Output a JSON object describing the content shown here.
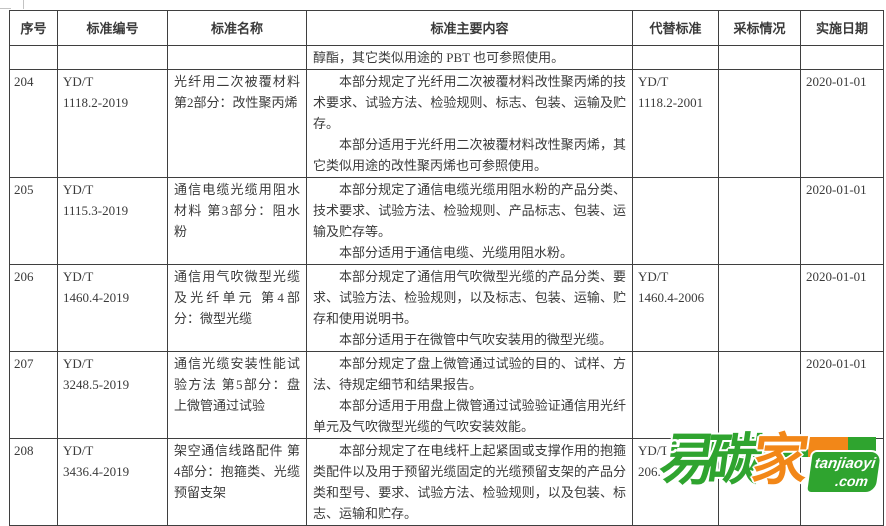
{
  "table": {
    "columns": [
      "序号",
      "标准编号",
      "标准名称",
      "标准主要内容",
      "代替标准",
      "采标情况",
      "实施日期"
    ],
    "rows": [
      {
        "no": "",
        "code_lines": [],
        "name": "",
        "content_paragraphs": [
          "醇酯，其它类似用途的 PBT 也可参照使用。"
        ],
        "indent": false,
        "replaced_lines": [],
        "adoption": "",
        "date": ""
      },
      {
        "no": "204",
        "code_lines": [
          "YD/T",
          "1118.2-2019"
        ],
        "name": "光纤用二次被覆材料 第2部分：改性聚丙烯",
        "content_paragraphs": [
          "本部分规定了光纤用二次被覆材料改性聚丙烯的技术要求、试验方法、检验规则、标志、包装、运输及贮存。",
          "本部分适用于光纤用二次被覆材料改性聚丙烯，其它类似用途的改性聚丙烯也可参照使用。"
        ],
        "indent": true,
        "replaced_lines": [
          "YD/T",
          "1118.2-2001"
        ],
        "adoption": "",
        "date": "2020-01-01"
      },
      {
        "no": "205",
        "code_lines": [
          "YD/T",
          "1115.3-2019"
        ],
        "name": "通信电缆光缆用阻水材料 第3部分：阻水粉",
        "content_paragraphs": [
          "本部分规定了通信电缆光缆用阻水粉的产品分类、技术要求、试验方法、检验规则、产品标志、包装、运输及贮存等。",
          "本部分适用于通信电缆、光缆用阻水粉。"
        ],
        "indent": true,
        "replaced_lines": [],
        "adoption": "",
        "date": "2020-01-01"
      },
      {
        "no": "206",
        "code_lines": [
          "YD/T",
          "1460.4-2019"
        ],
        "name": "通信用气吹微型光缆及光纤单元 第4部分：微型光缆",
        "content_paragraphs": [
          "本部分规定了通信用气吹微型光缆的产品分类、要求、试验方法、检验规则，以及标志、包装、运输、贮存和使用说明书。",
          "本部分适用于在微管中气吹安装用的微型光缆。"
        ],
        "indent": true,
        "replaced_lines": [
          "YD/T",
          "1460.4-2006"
        ],
        "adoption": "",
        "date": "2020-01-01"
      },
      {
        "no": "207",
        "code_lines": [
          "YD/T",
          "3248.5-2019"
        ],
        "name": "通信光缆安装性能试验方法 第5部分：盘上微管通过试验",
        "content_paragraphs": [
          "本部分规定了盘上微管通过试验的目的、试样、方法、待规定细节和结果报告。",
          "本部分适用于用盘上微管通过试验验证通信用光纤单元及气吹微型光缆的气吹安装效能。"
        ],
        "indent": true,
        "replaced_lines": [],
        "adoption": "",
        "date": "2020-01-01"
      },
      {
        "no": "208",
        "code_lines": [
          "YD/T",
          "3436.4-2019"
        ],
        "name": "架空通信线路配件 第4部分：抱箍类、光缆预留支架",
        "content_paragraphs": [
          "本部分规定了在电线杆上起紧固或支撑作用的抱箍类配件以及用于预留光缆固定的光缆预留支架的产品分类和型号、要求、试验方法、检验规则，以及包装、标志、运输和贮存。"
        ],
        "indent": true,
        "replaced_lines": [
          "YD/T",
          "206."
        ],
        "adoption": "",
        "date": "2020-01-01"
      }
    ]
  },
  "watermark": {
    "char_green": "易碳",
    "char_orange": "家",
    "e_accent": "e",
    "domain_line1": "tanjiaoyi",
    "domain_line2": ".com",
    "green": "#2fa42f",
    "orange": "#f28718"
  }
}
